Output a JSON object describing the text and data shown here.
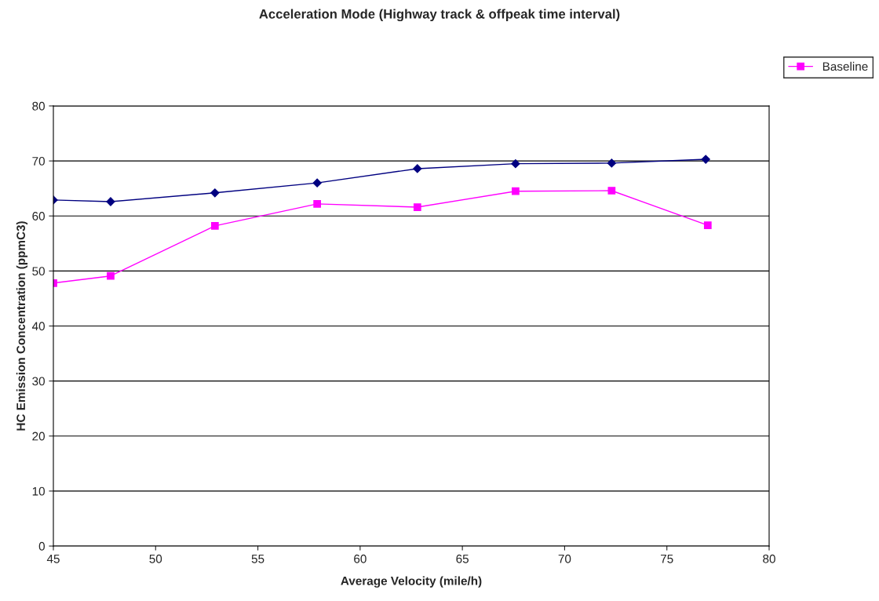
{
  "chart_data": {
    "type": "line",
    "title": "Acceleration Mode (Highway track & offpeak time interval)",
    "xlabel": "Average Velocity (mile/h)",
    "ylabel": "HC Emission Concentration (ppmC3)",
    "xlim": [
      45,
      80
    ],
    "xticks": [
      45,
      50,
      55,
      60,
      65,
      70,
      75,
      80
    ],
    "ylim": [
      0,
      80
    ],
    "yticks": [
      0,
      10,
      20,
      30,
      40,
      50,
      60,
      70,
      80
    ],
    "grid": "y",
    "legend": "top right",
    "series": [
      {
        "color": "#000080",
        "marker": "diamond",
        "x": [
          45,
          47.8,
          52.9,
          57.9,
          62.8,
          67.6,
          72.3,
          76.9
        ],
        "values": [
          62.9,
          62.6,
          64.2,
          66.0,
          68.6,
          69.5,
          69.6,
          70.3
        ]
      },
      {
        "name": "Baseline",
        "color": "#ff00ff",
        "marker": "square",
        "x": [
          45,
          47.8,
          52.9,
          57.9,
          62.8,
          67.6,
          72.3,
          77.0
        ],
        "values": [
          47.8,
          49.1,
          58.2,
          62.2,
          61.6,
          64.5,
          64.6,
          58.3
        ]
      }
    ]
  }
}
